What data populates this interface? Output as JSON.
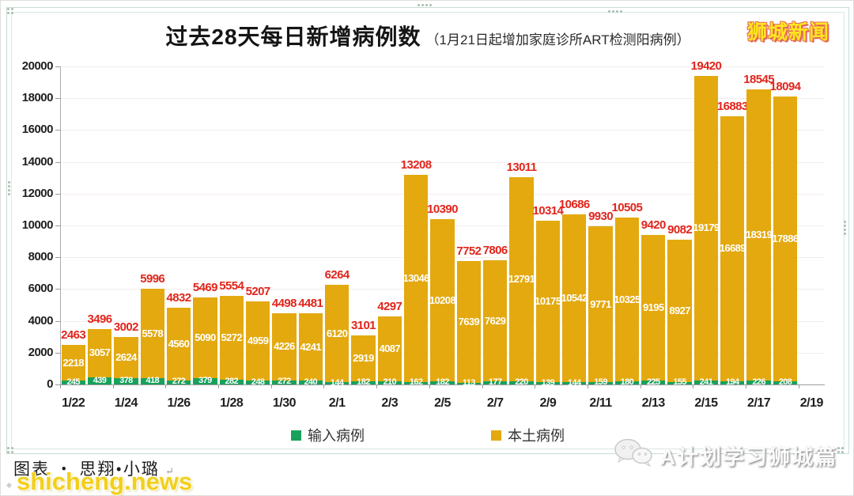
{
  "header": {
    "title": "过去28天每日新增病例数",
    "subtitle": "（1月21日起增加家庭诊所ART检测阳病例）"
  },
  "logo": "狮城新闻",
  "legend": {
    "imported": "输入病例",
    "local": "本土病例"
  },
  "footer": {
    "credit": "图表 ・ 思翔•小璐",
    "return_mark": "↵",
    "watermark_site": "shicheng.news",
    "watermark_channel": "A计划学习狮城篇"
  },
  "chart_data": {
    "type": "bar",
    "stacked": true,
    "title": "过去28天每日新增病例数（1月21日起增加家庭诊所ART检测阳病例）",
    "ylim": [
      0,
      20000
    ],
    "y_ticks": [
      0,
      2000,
      4000,
      6000,
      8000,
      10000,
      12000,
      14000,
      16000,
      18000,
      20000
    ],
    "x_tick_labels": [
      "1/22",
      "1/24",
      "1/26",
      "1/28",
      "1/30",
      "2/1",
      "2/3",
      "2/5",
      "2/7",
      "2/9",
      "2/11",
      "2/13",
      "2/15",
      "2/17",
      "2/19"
    ],
    "grid": true,
    "legend_position": "bottom",
    "series": [
      {
        "name": "输入病例",
        "color": "#17a15b",
        "values": [
          245,
          439,
          378,
          418,
          272,
          379,
          282,
          248,
          272,
          240,
          144,
          182,
          210,
          162,
          182,
          113,
          177,
          220,
          139,
          144,
          159,
          180,
          225,
          155,
          241,
          194,
          226,
          208
        ]
      },
      {
        "name": "本土病例",
        "color": "#e3a90f",
        "values": [
          2218,
          3057,
          2624,
          5578,
          4560,
          5090,
          5272,
          4959,
          4226,
          4241,
          6120,
          2919,
          4087,
          13046,
          10208,
          7639,
          7629,
          12791,
          10175,
          10542,
          9771,
          10325,
          9195,
          8927,
          19179,
          16689,
          18319,
          17886
        ]
      }
    ],
    "totals": [
      2463,
      3496,
      3002,
      5996,
      4832,
      5469,
      5554,
      5207,
      4498,
      4481,
      6264,
      3101,
      4297,
      13208,
      10390,
      7752,
      7806,
      13011,
      10314,
      10686,
      9930,
      10505,
      9420,
      9082,
      19420,
      16883,
      18545,
      18094
    ],
    "colors": {
      "total_label": "#e1251b",
      "local_label": "#ffffff",
      "imported_label": "#ffffff",
      "grid": "#f5ecec",
      "axis": "#9b9b9b"
    }
  }
}
